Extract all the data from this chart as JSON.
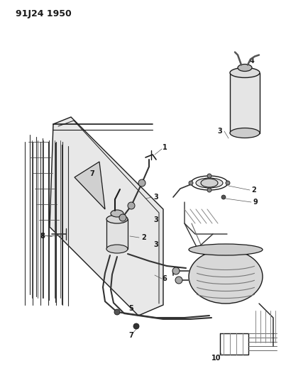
{
  "title": "91J24 1950",
  "bg_color": "#f2efea",
  "line_color": "#1a1a1a",
  "title_fontsize": 10,
  "fig_width": 4.03,
  "fig_height": 5.33,
  "dpi": 100
}
